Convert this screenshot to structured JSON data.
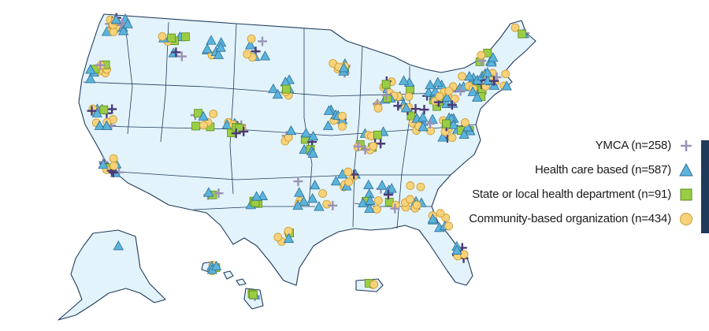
{
  "legend": [
    {
      "key": "ymca",
      "label": "YMCA (n=258)",
      "marker": "plus",
      "color": "#9a93b8"
    },
    {
      "key": "health_care",
      "label": "Health care based (n=587)",
      "marker": "triangle",
      "color": "#5ab4dc"
    },
    {
      "key": "health_dept",
      "label": "State or local health department (n=91)",
      "marker": "square",
      "color": "#9acd45"
    },
    {
      "key": "community",
      "label": "Community-based organization (n=434)",
      "marker": "circle",
      "color": "#f7d27a"
    }
  ],
  "colors": {
    "land": "#e3f3fb",
    "border": "#1f3b5c",
    "ymca_dense": "#4a3a78",
    "triangle_edge": "#2d6e96",
    "square_edge": "#5c8a1e",
    "circle_edge": "#c79b2e"
  }
}
